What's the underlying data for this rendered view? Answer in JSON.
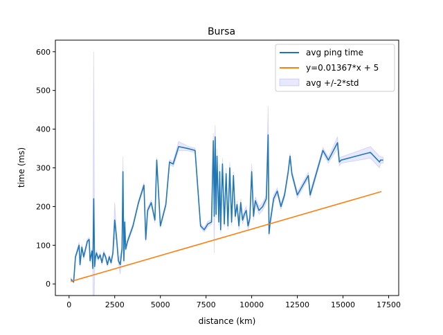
{
  "chart_data": {
    "type": "line",
    "title": "Bursa",
    "xlabel": "distance (km)",
    "ylabel": "time (ms)",
    "xlim": [
      -750,
      18050
    ],
    "ylim": [
      -30,
      630
    ],
    "grid": false,
    "legend_position": "top-right",
    "x_ticks": [
      0,
      2500,
      5000,
      7500,
      10000,
      12500,
      15000,
      17500
    ],
    "x_tick_labels": [
      "0",
      "2500",
      "5000",
      "7500",
      "10000",
      "12500",
      "15000",
      "17500"
    ],
    "y_ticks": [
      0,
      100,
      200,
      300,
      400,
      500,
      600
    ],
    "y_tick_labels": [
      "0",
      "100",
      "200",
      "300",
      "400",
      "500",
      "600"
    ],
    "colors": {
      "avg": "#1f77b4",
      "fit": "#ff7f0e",
      "band_fill": "#6464ff",
      "band_edge": "#0000ff"
    },
    "series": [
      {
        "name": "avg ping time",
        "kind": "line",
        "x": [
          100,
          250,
          350,
          550,
          600,
          700,
          800,
          900,
          1000,
          1100,
          1150,
          1250,
          1300,
          1350,
          1400,
          1450,
          1500,
          1600,
          1700,
          1800,
          1900,
          2000,
          2100,
          2200,
          2300,
          2400,
          2500,
          2600,
          2700,
          2800,
          2900,
          2950,
          3000,
          3050,
          3100,
          3200,
          3500,
          3800,
          4100,
          4200,
          4300,
          4500,
          4700,
          4800,
          5000,
          5300,
          5500,
          5700,
          6000,
          6500,
          6900,
          7200,
          7400,
          7600,
          7800,
          7900,
          7950,
          8000,
          8050,
          8100,
          8200,
          8250,
          8300,
          8400,
          8500,
          8600,
          8700,
          8800,
          8900,
          9000,
          9100,
          9200,
          9300,
          9400,
          9500,
          9600,
          9700,
          9800,
          9900,
          10000,
          10100,
          10200,
          10400,
          10600,
          10800,
          10900,
          10950,
          11000,
          11200,
          11400,
          11600,
          11800,
          12000,
          12100,
          12200,
          12500,
          13100,
          13200,
          13900,
          14200,
          14700,
          14800,
          14900,
          16500,
          17000,
          17050,
          17100,
          17200
        ],
        "y": [
          12,
          5,
          70,
          100,
          50,
          95,
          70,
          90,
          110,
          115,
          60,
          85,
          40,
          220,
          45,
          70,
          80,
          65,
          75,
          55,
          80,
          70,
          50,
          70,
          55,
          80,
          165,
          120,
          60,
          50,
          90,
          290,
          60,
          160,
          90,
          110,
          150,
          210,
          255,
          115,
          190,
          210,
          165,
          320,
          150,
          205,
          315,
          310,
          355,
          350,
          345,
          150,
          140,
          155,
          160,
          370,
          175,
          380,
          180,
          330,
          160,
          290,
          140,
          310,
          155,
          285,
          150,
          300,
          160,
          280,
          175,
          205,
          150,
          210,
          165,
          180,
          190,
          150,
          170,
          290,
          175,
          215,
          190,
          200,
          220,
          385,
          130,
          155,
          220,
          240,
          200,
          230,
          290,
          330,
          285,
          230,
          280,
          230,
          345,
          320,
          365,
          315,
          320,
          340,
          315,
          320,
          320,
          320
        ]
      },
      {
        "name": "y=0.01367*x + 5",
        "kind": "line",
        "x": [
          100,
          17100
        ],
        "y": [
          6.37,
          238.76
        ]
      },
      {
        "name": "avg +/-2*std",
        "kind": "band",
        "x": [
          100,
          250,
          350,
          550,
          600,
          700,
          800,
          900,
          1000,
          1100,
          1150,
          1250,
          1300,
          1350,
          1400,
          1450,
          1500,
          1600,
          1700,
          1800,
          1900,
          2000,
          2100,
          2200,
          2300,
          2400,
          2500,
          2600,
          2700,
          2800,
          2900,
          2950,
          3000,
          3050,
          3100,
          3200,
          3500,
          3800,
          4100,
          4200,
          4300,
          4500,
          4700,
          4800,
          5000,
          5300,
          5500,
          5700,
          6000,
          6500,
          6900,
          7200,
          7400,
          7600,
          7800,
          7900,
          7950,
          8000,
          8050,
          8100,
          8200,
          8250,
          8300,
          8400,
          8500,
          8600,
          8700,
          8800,
          8900,
          9000,
          9100,
          9200,
          9300,
          9400,
          9500,
          9600,
          9700,
          9800,
          9900,
          10000,
          10100,
          10200,
          10400,
          10600,
          10800,
          10900,
          10950,
          11000,
          11200,
          11400,
          11600,
          11800,
          12000,
          12100,
          12200,
          12500,
          13100,
          13200,
          13900,
          14200,
          14700,
          14800,
          14900,
          16500,
          17000,
          17050,
          17100,
          17200
        ],
        "lower": [
          8,
          3,
          65,
          92,
          45,
          88,
          63,
          84,
          104,
          110,
          55,
          80,
          35,
          -150,
          40,
          65,
          74,
          60,
          70,
          50,
          74,
          65,
          45,
          65,
          50,
          74,
          120,
          112,
          55,
          25,
          84,
          250,
          54,
          150,
          84,
          104,
          144,
          204,
          248,
          110,
          183,
          204,
          158,
          313,
          144,
          199,
          309,
          303,
          345,
          344,
          339,
          145,
          134,
          148,
          154,
          330,
          80,
          350,
          170,
          310,
          150,
          270,
          130,
          295,
          146,
          270,
          140,
          285,
          150,
          270,
          165,
          195,
          140,
          200,
          155,
          170,
          180,
          140,
          160,
          270,
          165,
          205,
          180,
          190,
          210,
          310,
          125,
          145,
          210,
          232,
          193,
          222,
          282,
          323,
          278,
          222,
          272,
          222,
          338,
          312,
          350,
          305,
          312,
          325,
          300,
          310,
          312,
          312
        ],
        "upper": [
          16,
          7,
          75,
          108,
          55,
          102,
          77,
          96,
          116,
          120,
          65,
          90,
          45,
          600,
          50,
          75,
          86,
          70,
          80,
          60,
          86,
          75,
          55,
          75,
          60,
          86,
          210,
          128,
          65,
          75,
          96,
          330,
          66,
          170,
          96,
          116,
          156,
          216,
          262,
          120,
          197,
          216,
          172,
          327,
          156,
          211,
          321,
          317,
          368,
          356,
          351,
          155,
          146,
          162,
          166,
          390,
          270,
          410,
          190,
          350,
          170,
          310,
          150,
          325,
          164,
          300,
          160,
          315,
          170,
          290,
          185,
          215,
          160,
          220,
          175,
          190,
          200,
          160,
          180,
          310,
          185,
          225,
          200,
          210,
          230,
          460,
          135,
          165,
          230,
          248,
          207,
          238,
          298,
          337,
          292,
          238,
          288,
          238,
          352,
          328,
          380,
          325,
          328,
          355,
          330,
          330,
          328,
          328
        ]
      }
    ]
  }
}
